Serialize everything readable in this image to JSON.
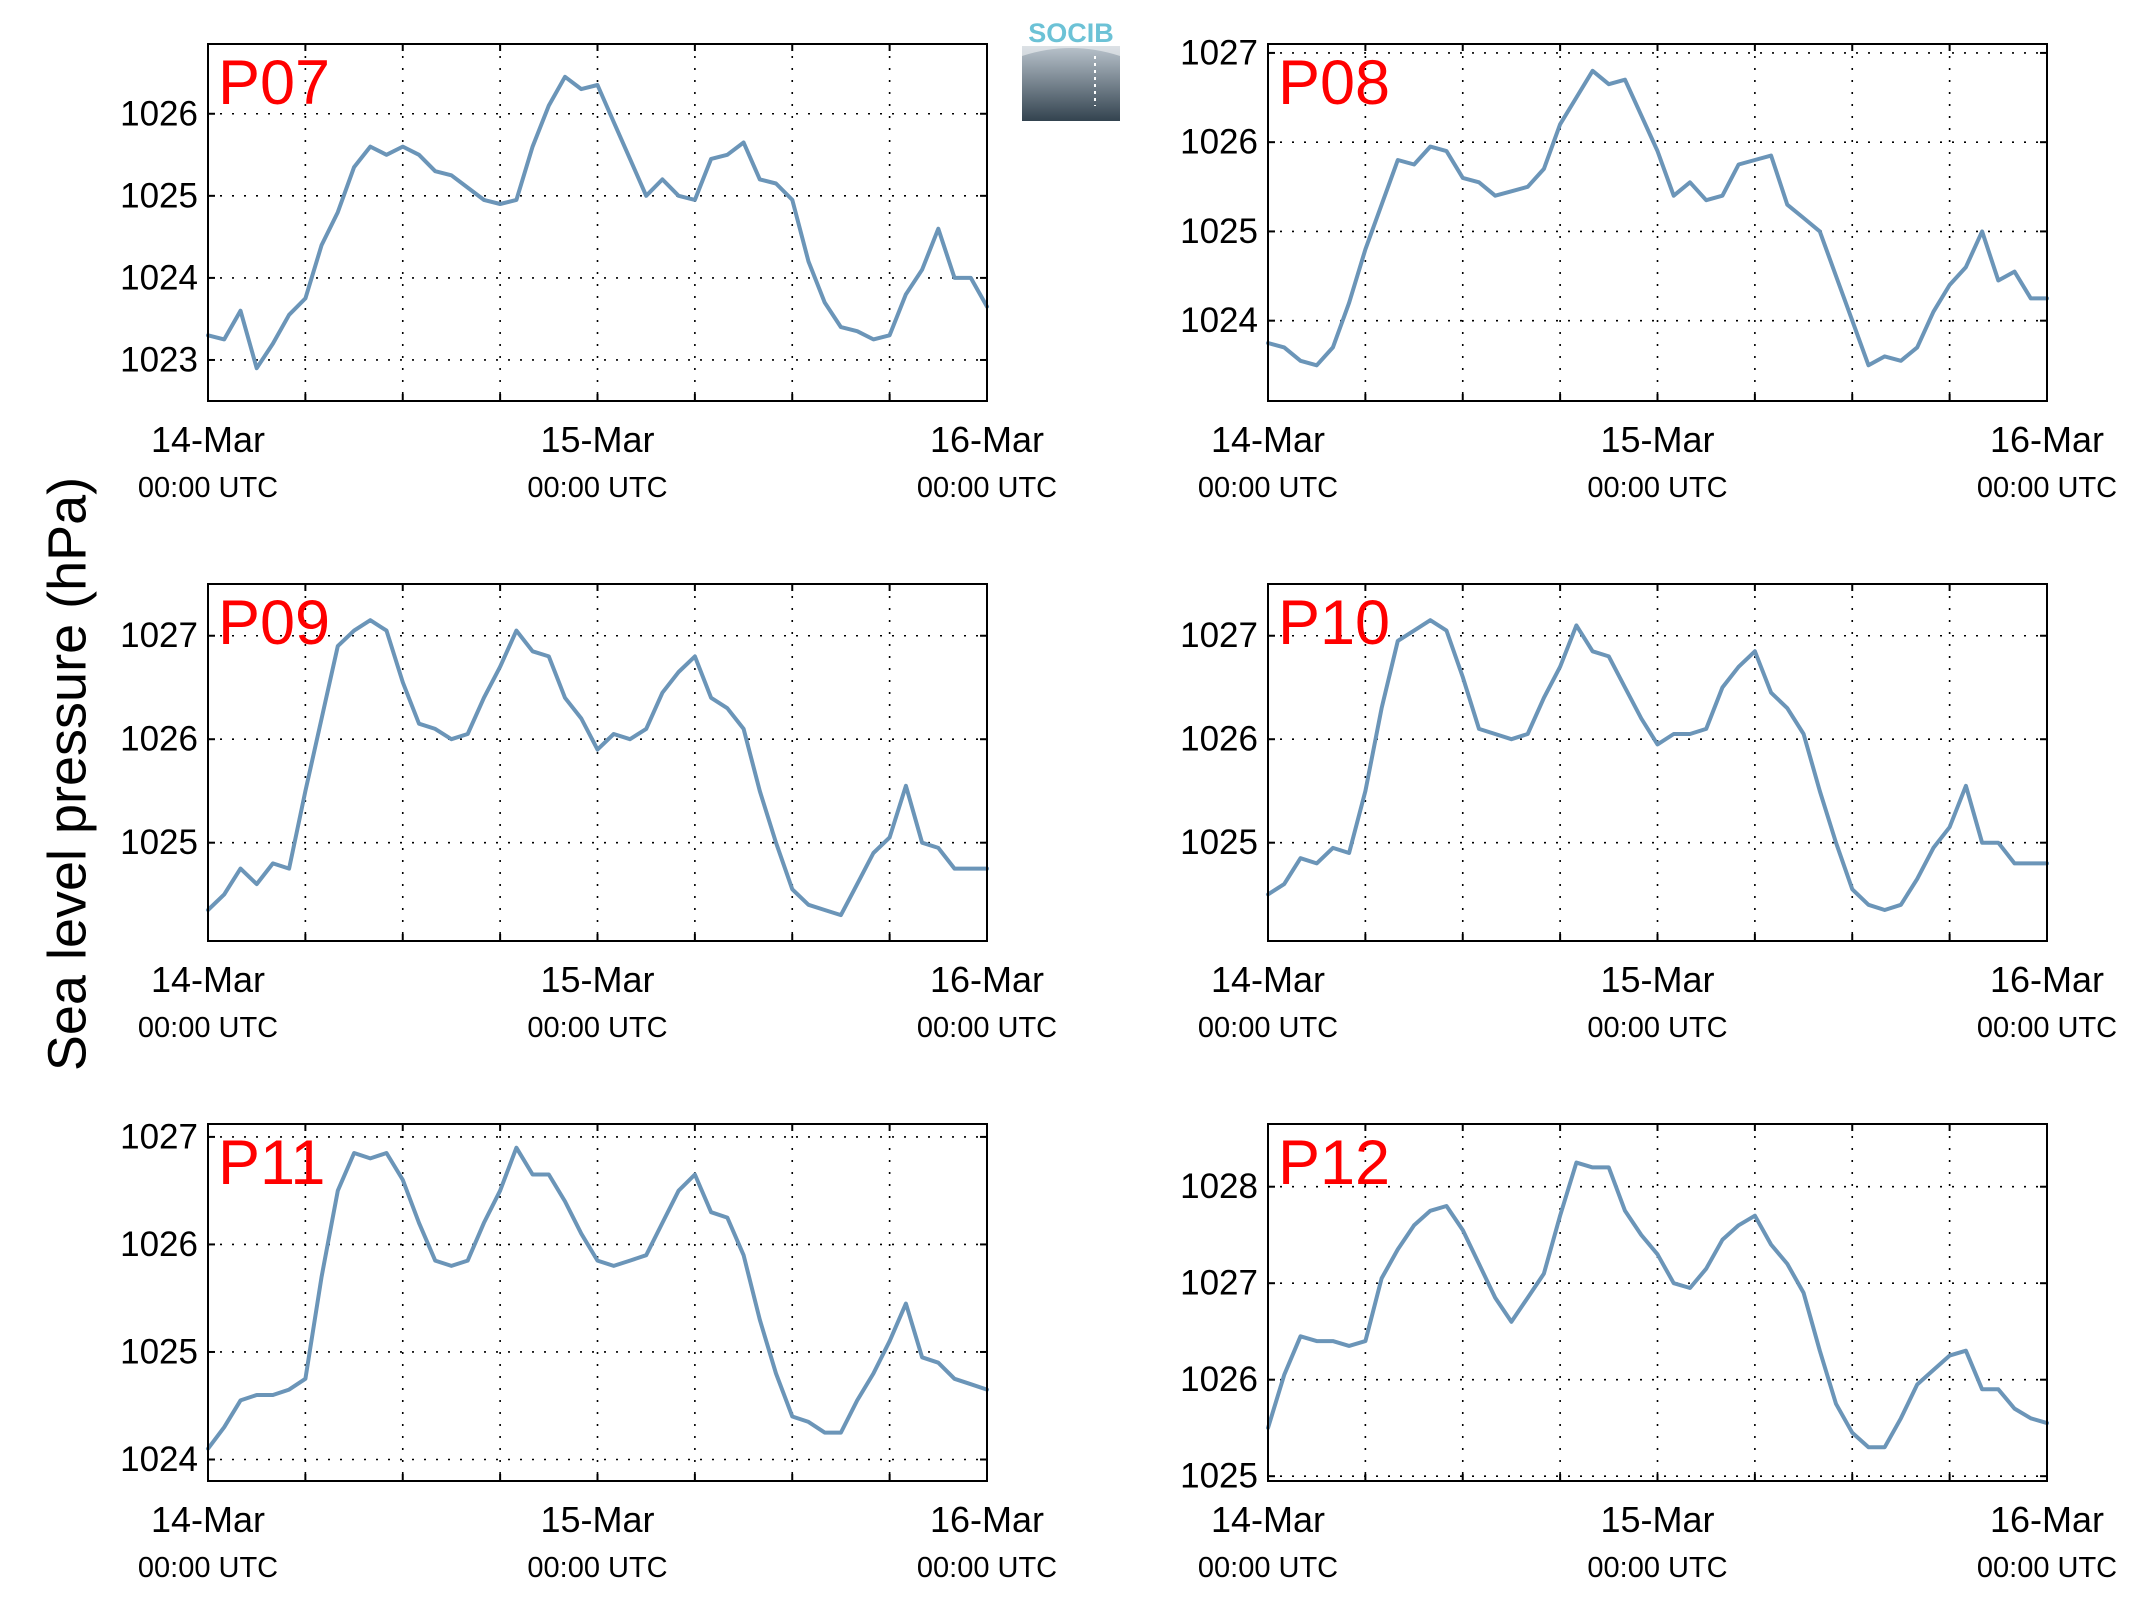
{
  "colors": {
    "line": "#6b95b8",
    "panel_label": "#ff0000",
    "axis": "#000000",
    "grid": "#000000",
    "logo_text": "#6cc2d6"
  },
  "logo": {
    "text": "SOCIB"
  },
  "ylabel": "Sea level pressure (hPa)",
  "chart_data": [
    {
      "type": "line",
      "label": "P07",
      "xlabels": [
        {
          "date": "14-Mar",
          "time": "00:00 UTC"
        },
        {
          "date": "15-Mar",
          "time": "00:00 UTC"
        },
        {
          "date": "16-Mar",
          "time": "00:00 UTC"
        }
      ],
      "x_hours": [
        0,
        1,
        2,
        3,
        4,
        5,
        6,
        7,
        8,
        9,
        10,
        11,
        12,
        13,
        14,
        15,
        16,
        17,
        18,
        19,
        20,
        21,
        22,
        23,
        24,
        25,
        26,
        27,
        28,
        29,
        30,
        31,
        32,
        33,
        34,
        35,
        36,
        37,
        38,
        39,
        40,
        41,
        42,
        43,
        44,
        45,
        46,
        47,
        48
      ],
      "y": [
        1023.3,
        1023.25,
        1023.6,
        1022.9,
        1023.2,
        1023.55,
        1023.75,
        1024.4,
        1024.8,
        1025.35,
        1025.6,
        1025.5,
        1025.6,
        1025.5,
        1025.3,
        1025.25,
        1025.1,
        1024.95,
        1024.9,
        1024.95,
        1025.6,
        1026.1,
        1026.45,
        1026.3,
        1026.35,
        1025.9,
        1025.45,
        1025.0,
        1025.2,
        1025.0,
        1024.95,
        1025.45,
        1025.5,
        1025.65,
        1025.2,
        1025.15,
        1024.95,
        1024.2,
        1023.7,
        1023.4,
        1023.35,
        1023.25,
        1023.3,
        1023.8,
        1024.1,
        1024.6,
        1024.0,
        1024.0,
        1023.65
      ],
      "yticks": [
        1023,
        1024,
        1025,
        1026
      ],
      "ylim": [
        1022.5,
        1026.85
      ]
    },
    {
      "type": "line",
      "label": "P08",
      "xlabels": [
        {
          "date": "14-Mar",
          "time": "00:00 UTC"
        },
        {
          "date": "15-Mar",
          "time": "00:00 UTC"
        },
        {
          "date": "16-Mar",
          "time": "00:00 UTC"
        }
      ],
      "x_hours": [
        0,
        1,
        2,
        3,
        4,
        5,
        6,
        7,
        8,
        9,
        10,
        11,
        12,
        13,
        14,
        15,
        16,
        17,
        18,
        19,
        20,
        21,
        22,
        23,
        24,
        25,
        26,
        27,
        28,
        29,
        30,
        31,
        32,
        33,
        34,
        35,
        36,
        37,
        38,
        39,
        40,
        41,
        42,
        43,
        44,
        45,
        46,
        47,
        48
      ],
      "y": [
        1023.75,
        1023.7,
        1023.55,
        1023.5,
        1023.7,
        1024.2,
        1024.8,
        1025.3,
        1025.8,
        1025.75,
        1025.95,
        1025.9,
        1025.6,
        1025.55,
        1025.4,
        1025.45,
        1025.5,
        1025.7,
        1026.2,
        1026.5,
        1026.8,
        1026.65,
        1026.7,
        1026.3,
        1025.9,
        1025.4,
        1025.55,
        1025.35,
        1025.4,
        1025.75,
        1025.8,
        1025.85,
        1025.3,
        1025.15,
        1025.0,
        1024.5,
        1024.0,
        1023.5,
        1023.6,
        1023.55,
        1023.7,
        1024.1,
        1024.4,
        1024.6,
        1025.0,
        1024.45,
        1024.55,
        1024.25,
        1024.25
      ],
      "yticks": [
        1024,
        1025,
        1026,
        1027
      ],
      "ylim": [
        1023.1,
        1027.1
      ]
    },
    {
      "type": "line",
      "label": "P09",
      "xlabels": [
        {
          "date": "14-Mar",
          "time": "00:00 UTC"
        },
        {
          "date": "15-Mar",
          "time": "00:00 UTC"
        },
        {
          "date": "16-Mar",
          "time": "00:00 UTC"
        }
      ],
      "x_hours": [
        0,
        1,
        2,
        3,
        4,
        5,
        6,
        7,
        8,
        9,
        10,
        11,
        12,
        13,
        14,
        15,
        16,
        17,
        18,
        19,
        20,
        21,
        22,
        23,
        24,
        25,
        26,
        27,
        28,
        29,
        30,
        31,
        32,
        33,
        34,
        35,
        36,
        37,
        38,
        39,
        40,
        41,
        42,
        43,
        44,
        45,
        46,
        47,
        48
      ],
      "y": [
        1024.35,
        1024.5,
        1024.75,
        1024.6,
        1024.8,
        1024.75,
        1025.5,
        1026.2,
        1026.9,
        1027.05,
        1027.15,
        1027.05,
        1026.55,
        1026.15,
        1026.1,
        1026.0,
        1026.05,
        1026.4,
        1026.7,
        1027.05,
        1026.85,
        1026.8,
        1026.4,
        1026.2,
        1025.9,
        1026.05,
        1026.0,
        1026.1,
        1026.45,
        1026.65,
        1026.8,
        1026.4,
        1026.3,
        1026.1,
        1025.5,
        1025.0,
        1024.55,
        1024.4,
        1024.35,
        1024.3,
        1024.6,
        1024.9,
        1025.05,
        1025.55,
        1025.0,
        1024.95,
        1024.75,
        1024.75,
        1024.75
      ],
      "yticks": [
        1025,
        1026,
        1027
      ],
      "ylim": [
        1024.05,
        1027.5
      ]
    },
    {
      "type": "line",
      "label": "P10",
      "xlabels": [
        {
          "date": "14-Mar",
          "time": "00:00 UTC"
        },
        {
          "date": "15-Mar",
          "time": "00:00 UTC"
        },
        {
          "date": "16-Mar",
          "time": "00:00 UTC"
        }
      ],
      "x_hours": [
        0,
        1,
        2,
        3,
        4,
        5,
        6,
        7,
        8,
        9,
        10,
        11,
        12,
        13,
        14,
        15,
        16,
        17,
        18,
        19,
        20,
        21,
        22,
        23,
        24,
        25,
        26,
        27,
        28,
        29,
        30,
        31,
        32,
        33,
        34,
        35,
        36,
        37,
        38,
        39,
        40,
        41,
        42,
        43,
        44,
        45,
        46,
        47,
        48
      ],
      "y": [
        1024.5,
        1024.6,
        1024.85,
        1024.8,
        1024.95,
        1024.9,
        1025.5,
        1026.3,
        1026.95,
        1027.05,
        1027.15,
        1027.05,
        1026.6,
        1026.1,
        1026.05,
        1026.0,
        1026.05,
        1026.4,
        1026.7,
        1027.1,
        1026.85,
        1026.8,
        1026.5,
        1026.2,
        1025.95,
        1026.05,
        1026.05,
        1026.1,
        1026.5,
        1026.7,
        1026.85,
        1026.45,
        1026.3,
        1026.05,
        1025.5,
        1025.0,
        1024.55,
        1024.4,
        1024.35,
        1024.4,
        1024.65,
        1024.95,
        1025.15,
        1025.55,
        1025.0,
        1025.0,
        1024.8,
        1024.8,
        1024.8
      ],
      "yticks": [
        1025,
        1026,
        1027
      ],
      "ylim": [
        1024.05,
        1027.5
      ]
    },
    {
      "type": "line",
      "label": "P11",
      "xlabels": [
        {
          "date": "14-Mar",
          "time": "00:00 UTC"
        },
        {
          "date": "15-Mar",
          "time": "00:00 UTC"
        },
        {
          "date": "16-Mar",
          "time": "00:00 UTC"
        }
      ],
      "x_hours": [
        0,
        1,
        2,
        3,
        4,
        5,
        6,
        7,
        8,
        9,
        10,
        11,
        12,
        13,
        14,
        15,
        16,
        17,
        18,
        19,
        20,
        21,
        22,
        23,
        24,
        25,
        26,
        27,
        28,
        29,
        30,
        31,
        32,
        33,
        34,
        35,
        36,
        37,
        38,
        39,
        40,
        41,
        42,
        43,
        44,
        45,
        46,
        47,
        48
      ],
      "y": [
        1024.1,
        1024.3,
        1024.55,
        1024.6,
        1024.6,
        1024.65,
        1024.75,
        1025.7,
        1026.5,
        1026.85,
        1026.8,
        1026.85,
        1026.6,
        1026.2,
        1025.85,
        1025.8,
        1025.85,
        1026.2,
        1026.5,
        1026.9,
        1026.65,
        1026.65,
        1026.4,
        1026.1,
        1025.85,
        1025.8,
        1025.85,
        1025.9,
        1026.2,
        1026.5,
        1026.65,
        1026.3,
        1026.25,
        1025.9,
        1025.3,
        1024.8,
        1024.4,
        1024.35,
        1024.25,
        1024.25,
        1024.55,
        1024.8,
        1025.1,
        1025.45,
        1024.95,
        1024.9,
        1024.75,
        1024.7,
        1024.65
      ],
      "yticks": [
        1024,
        1025,
        1026,
        1027
      ],
      "ylim": [
        1023.8,
        1027.12
      ]
    },
    {
      "type": "line",
      "label": "P12",
      "xlabels": [
        {
          "date": "14-Mar",
          "time": "00:00 UTC"
        },
        {
          "date": "15-Mar",
          "time": "00:00 UTC"
        },
        {
          "date": "16-Mar",
          "time": "00:00 UTC"
        }
      ],
      "x_hours": [
        0,
        1,
        2,
        3,
        4,
        5,
        6,
        7,
        8,
        9,
        10,
        11,
        12,
        13,
        14,
        15,
        16,
        17,
        18,
        19,
        20,
        21,
        22,
        23,
        24,
        25,
        26,
        27,
        28,
        29,
        30,
        31,
        32,
        33,
        34,
        35,
        36,
        37,
        38,
        39,
        40,
        41,
        42,
        43,
        44,
        45,
        46,
        47,
        48
      ],
      "y": [
        1025.5,
        1026.05,
        1026.45,
        1026.4,
        1026.4,
        1026.35,
        1026.4,
        1027.05,
        1027.35,
        1027.6,
        1027.75,
        1027.8,
        1027.55,
        1027.2,
        1026.85,
        1026.6,
        1026.85,
        1027.1,
        1027.7,
        1028.25,
        1028.2,
        1028.2,
        1027.75,
        1027.5,
        1027.3,
        1027.0,
        1026.95,
        1027.15,
        1027.45,
        1027.6,
        1027.7,
        1027.4,
        1027.2,
        1026.9,
        1026.3,
        1025.75,
        1025.45,
        1025.3,
        1025.3,
        1025.6,
        1025.95,
        1026.1,
        1026.25,
        1026.3,
        1025.9,
        1025.9,
        1025.7,
        1025.6,
        1025.55
      ],
      "yticks": [
        1025,
        1026,
        1027,
        1028
      ],
      "ylim": [
        1024.95,
        1028.65
      ]
    }
  ]
}
